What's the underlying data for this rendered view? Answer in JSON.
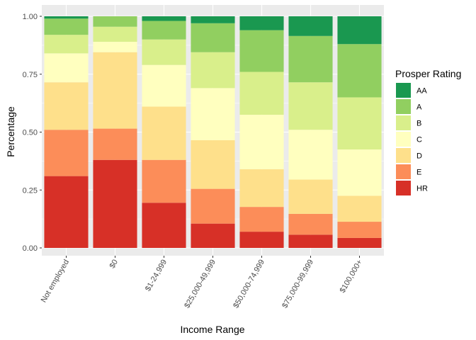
{
  "chart_data": {
    "type": "bar",
    "stacked": true,
    "xlabel": "Income Range",
    "ylabel": "Percentage",
    "ylim": [
      0,
      1.03
    ],
    "y_ticks": [
      0.0,
      0.25,
      0.5,
      0.75,
      1.0
    ],
    "y_tick_labels": [
      "0.00",
      "0.25",
      "0.50",
      "0.75",
      "1.00"
    ],
    "grid": true,
    "legend_position": "right",
    "legend_title": "Prosper Rating",
    "legend": [
      "AA",
      "A",
      "B",
      "C",
      "D",
      "E",
      "HR"
    ],
    "categories": [
      "Not employed",
      "$0",
      "$1-24,999",
      "$25,000-49,999",
      "$50,000-74,999",
      "$75,000-99,999",
      "$100,000+"
    ],
    "series": [
      {
        "name": "HR",
        "color": "#D73027",
        "values": [
          0.31,
          0.38,
          0.195,
          0.105,
          0.07,
          0.057,
          0.043
        ]
      },
      {
        "name": "E",
        "color": "#FC8D59",
        "values": [
          0.2,
          0.135,
          0.185,
          0.15,
          0.107,
          0.09,
          0.07
        ]
      },
      {
        "name": "D",
        "color": "#FEE08B",
        "values": [
          0.205,
          0.33,
          0.23,
          0.21,
          0.163,
          0.148,
          0.112
        ]
      },
      {
        "name": "C",
        "color": "#FFFFBF",
        "values": [
          0.125,
          0.045,
          0.18,
          0.225,
          0.235,
          0.215,
          0.2
        ]
      },
      {
        "name": "B",
        "color": "#D9EF8B",
        "values": [
          0.08,
          0.065,
          0.11,
          0.155,
          0.185,
          0.205,
          0.225
        ]
      },
      {
        "name": "A",
        "color": "#91CF60",
        "values": [
          0.07,
          0.045,
          0.08,
          0.125,
          0.18,
          0.2,
          0.23
        ]
      },
      {
        "name": "AA",
        "color": "#1A9850",
        "values": [
          0.01,
          0.0,
          0.02,
          0.03,
          0.06,
          0.085,
          0.12
        ]
      }
    ]
  }
}
